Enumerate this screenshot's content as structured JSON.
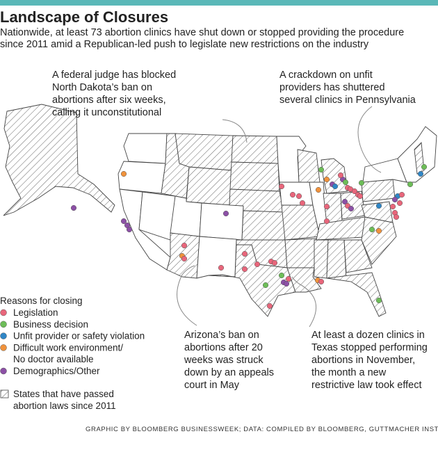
{
  "header": {
    "title": "Landscape of Closures",
    "subtitle": [
      "Nationwide, at least 73 abortion clinics have shut down or stopped providing the procedure",
      "since 2011 amid a Republican-led push to legislate new restrictions on the industry"
    ]
  },
  "annotations": [
    {
      "lines": [
        "A federal judge has blocked",
        "North Dakota’s ban on",
        "abortions after six weeks,",
        "calling it unconstitutional"
      ]
    },
    {
      "lines": [
        "A crackdown on unfit",
        "providers has shuttered",
        "several clinics in Pennsylvania"
      ]
    },
    {
      "lines": [
        "Arizona’s ban on",
        "abortions after 20",
        "weeks was struck",
        "down by an appeals",
        "court in May"
      ]
    },
    {
      "lines": [
        "At least a dozen clinics in",
        "Texas stopped performing",
        "abortions in November,",
        "the month a new",
        "restrictive law took effect"
      ]
    }
  ],
  "legend": {
    "title": "Reasons for closing",
    "items": [
      {
        "label": [
          "Legislation"
        ],
        "color": "#e8667b"
      },
      {
        "label": [
          "Business decision"
        ],
        "color": "#6dbd58"
      },
      {
        "label": [
          "Unfit provider or safety violation"
        ],
        "color": "#2f86c6"
      },
      {
        "label": [
          "Difficult work environment/",
          "No doctor available"
        ],
        "color": "#f0923c"
      },
      {
        "label": [
          "Demographics/Other"
        ],
        "color": "#8c50a6"
      }
    ],
    "hatch_label": [
      "States that have passed",
      "abortion laws since 2011"
    ]
  },
  "credit": "GRAPHIC BY BLOOMBERG BUSINESSWEEK; DATA: COMPILED BY BLOOMBERG, GUTTMACHER INSTITUTE"
}
